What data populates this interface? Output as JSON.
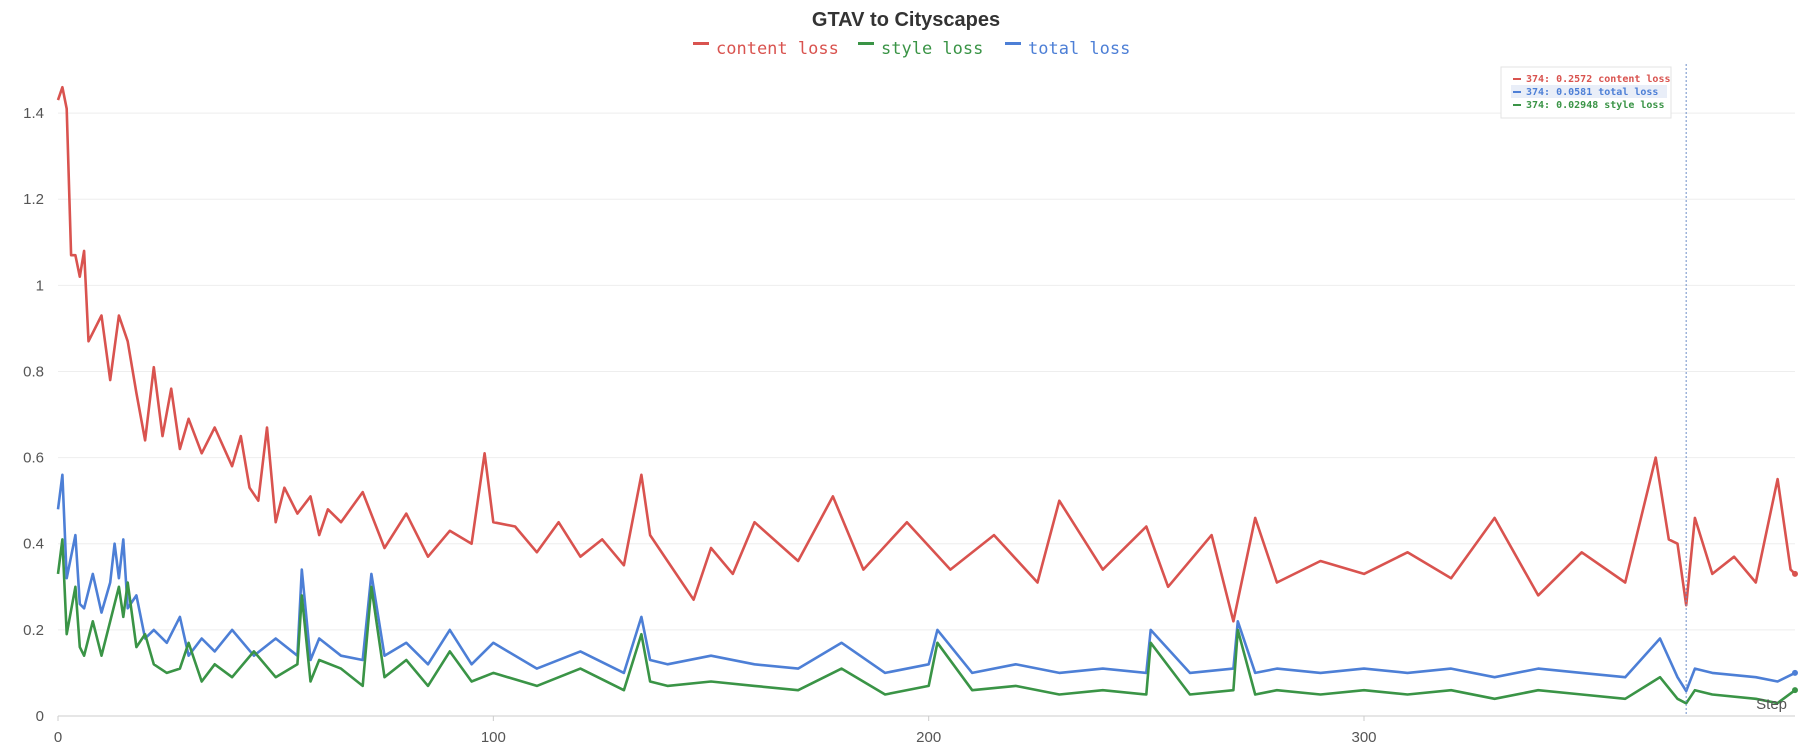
{
  "chart_data": {
    "type": "line",
    "title": "GTAV to Cityscapes",
    "xlabel": "Step",
    "ylabel": "",
    "xlim": [
      0,
      399
    ],
    "ylim": [
      0,
      1.5
    ],
    "x_ticks": [
      0,
      100,
      200,
      300
    ],
    "y_ticks": [
      0,
      0.2,
      0.4,
      0.6,
      0.8,
      1,
      1.2,
      1.4
    ],
    "y_tick_labels": [
      "0",
      "0.2",
      "0.4",
      "0.6",
      "0.8",
      "1",
      "1.2",
      "1.4"
    ],
    "grid": "horizontal",
    "legend_position": "top-center",
    "series": [
      {
        "name": "content loss",
        "color": "#d9534f",
        "x": [
          0,
          1,
          2,
          3,
          4,
          5,
          6,
          7,
          10,
          12,
          14,
          16,
          18,
          20,
          22,
          24,
          26,
          28,
          30,
          33,
          36,
          40,
          42,
          44,
          46,
          48,
          50,
          52,
          55,
          58,
          60,
          62,
          65,
          70,
          75,
          80,
          85,
          90,
          95,
          98,
          100,
          105,
          110,
          115,
          120,
          125,
          130,
          134,
          136,
          140,
          146,
          150,
          155,
          160,
          170,
          178,
          185,
          195,
          205,
          215,
          225,
          230,
          240,
          250,
          255,
          265,
          270,
          275,
          280,
          290,
          300,
          310,
          320,
          330,
          340,
          350,
          360,
          367,
          370,
          372,
          374,
          376,
          380,
          385,
          390,
          395,
          398,
          399
        ],
        "values": [
          1.43,
          1.46,
          1.41,
          1.07,
          1.07,
          1.02,
          1.08,
          0.87,
          0.93,
          0.78,
          0.93,
          0.87,
          0.75,
          0.64,
          0.81,
          0.65,
          0.76,
          0.62,
          0.69,
          0.61,
          0.67,
          0.58,
          0.65,
          0.53,
          0.5,
          0.67,
          0.45,
          0.53,
          0.47,
          0.51,
          0.42,
          0.48,
          0.45,
          0.52,
          0.39,
          0.47,
          0.37,
          0.43,
          0.4,
          0.61,
          0.45,
          0.44,
          0.38,
          0.45,
          0.37,
          0.41,
          0.35,
          0.56,
          0.42,
          0.36,
          0.27,
          0.39,
          0.33,
          0.45,
          0.36,
          0.51,
          0.34,
          0.45,
          0.34,
          0.42,
          0.31,
          0.5,
          0.34,
          0.44,
          0.3,
          0.42,
          0.22,
          0.46,
          0.31,
          0.36,
          0.33,
          0.38,
          0.32,
          0.46,
          0.28,
          0.38,
          0.31,
          0.6,
          0.41,
          0.4,
          0.2572,
          0.46,
          0.33,
          0.37,
          0.31,
          0.55,
          0.34,
          0.33
        ]
      },
      {
        "name": "style loss",
        "color": "#3a9446",
        "x": [
          0,
          1,
          2,
          4,
          5,
          6,
          8,
          10,
          12,
          14,
          15,
          16,
          18,
          20,
          22,
          25,
          28,
          30,
          33,
          36,
          40,
          45,
          50,
          55,
          56,
          58,
          60,
          65,
          70,
          72,
          75,
          80,
          85,
          90,
          95,
          100,
          110,
          120,
          130,
          134,
          136,
          140,
          150,
          160,
          170,
          180,
          190,
          200,
          202,
          210,
          220,
          230,
          240,
          250,
          251,
          260,
          270,
          271,
          275,
          280,
          290,
          300,
          310,
          320,
          330,
          340,
          350,
          360,
          368,
          372,
          374,
          376,
          380,
          390,
          395,
          399
        ],
        "values": [
          0.33,
          0.41,
          0.19,
          0.3,
          0.16,
          0.14,
          0.22,
          0.14,
          0.22,
          0.3,
          0.23,
          0.31,
          0.16,
          0.19,
          0.12,
          0.1,
          0.11,
          0.17,
          0.08,
          0.12,
          0.09,
          0.15,
          0.09,
          0.12,
          0.28,
          0.08,
          0.13,
          0.11,
          0.07,
          0.3,
          0.09,
          0.13,
          0.07,
          0.15,
          0.08,
          0.1,
          0.07,
          0.11,
          0.06,
          0.19,
          0.08,
          0.07,
          0.08,
          0.07,
          0.06,
          0.11,
          0.05,
          0.07,
          0.17,
          0.06,
          0.07,
          0.05,
          0.06,
          0.05,
          0.17,
          0.05,
          0.06,
          0.2,
          0.05,
          0.06,
          0.05,
          0.06,
          0.05,
          0.06,
          0.04,
          0.06,
          0.05,
          0.04,
          0.09,
          0.04,
          0.02948,
          0.06,
          0.05,
          0.04,
          0.03,
          0.06
        ]
      },
      {
        "name": "total loss",
        "color": "#4d7fd6",
        "x": [
          0,
          1,
          2,
          4,
          5,
          6,
          8,
          10,
          12,
          13,
          14,
          15,
          16,
          18,
          20,
          22,
          25,
          28,
          30,
          33,
          36,
          40,
          45,
          50,
          55,
          56,
          58,
          60,
          65,
          70,
          72,
          75,
          80,
          85,
          90,
          95,
          100,
          110,
          120,
          130,
          134,
          136,
          140,
          150,
          160,
          170,
          180,
          190,
          200,
          202,
          210,
          220,
          230,
          240,
          250,
          251,
          260,
          270,
          271,
          275,
          280,
          290,
          300,
          310,
          320,
          330,
          340,
          350,
          360,
          368,
          372,
          374,
          376,
          380,
          390,
          395,
          399
        ],
        "values": [
          0.48,
          0.56,
          0.32,
          0.42,
          0.26,
          0.25,
          0.33,
          0.24,
          0.31,
          0.4,
          0.32,
          0.41,
          0.25,
          0.28,
          0.18,
          0.2,
          0.17,
          0.23,
          0.14,
          0.18,
          0.15,
          0.2,
          0.14,
          0.18,
          0.14,
          0.34,
          0.13,
          0.18,
          0.14,
          0.13,
          0.33,
          0.14,
          0.17,
          0.12,
          0.2,
          0.12,
          0.17,
          0.11,
          0.15,
          0.1,
          0.23,
          0.13,
          0.12,
          0.14,
          0.12,
          0.11,
          0.17,
          0.1,
          0.12,
          0.2,
          0.1,
          0.12,
          0.1,
          0.11,
          0.1,
          0.2,
          0.1,
          0.11,
          0.22,
          0.1,
          0.11,
          0.1,
          0.11,
          0.1,
          0.11,
          0.09,
          0.11,
          0.1,
          0.09,
          0.18,
          0.09,
          0.0581,
          0.11,
          0.1,
          0.09,
          0.08,
          0.1
        ]
      }
    ],
    "tooltip": {
      "step": 374,
      "rows": [
        {
          "label": "374: 0.2572 content loss",
          "color": "#d9534f"
        },
        {
          "label": "374: 0.0581 total loss",
          "color": "#4d7fd6"
        },
        {
          "label": "374: 0.02948 style loss",
          "color": "#3a9446"
        }
      ]
    }
  }
}
